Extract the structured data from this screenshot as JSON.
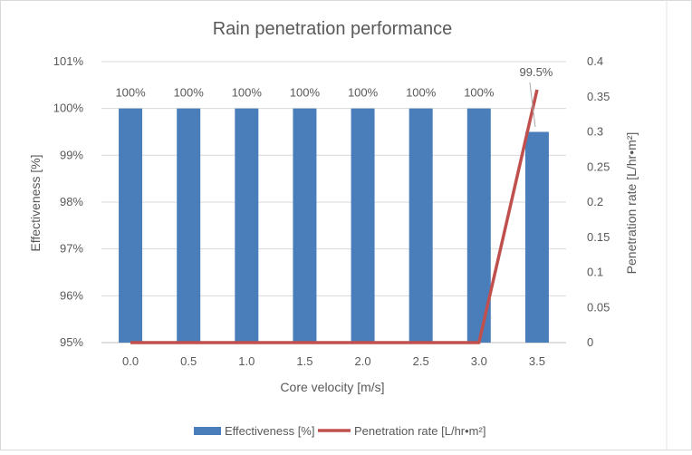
{
  "chart_data": {
    "type": "bar",
    "title": "Rain penetration performance",
    "xlabel": "Core velocity [m/s]",
    "ylabel": "Effectiveness [%]",
    "y2label": "Penetration rate [L/hr•m²]",
    "categories": [
      "0.0",
      "0.5",
      "1.0",
      "1.5",
      "2.0",
      "2.5",
      "3.0",
      "3.5"
    ],
    "series": [
      {
        "name": "Effectiveness [%]",
        "kind": "bar",
        "axis": "left",
        "color": "#4a7ebb",
        "values": [
          100,
          100,
          100,
          100,
          100,
          100,
          100,
          99.5
        ],
        "labels": [
          "100%",
          "100%",
          "100%",
          "100%",
          "100%",
          "100%",
          "100%",
          "99.5%"
        ]
      },
      {
        "name": "Penetration rate [L/hr•m²]",
        "kind": "line",
        "axis": "right",
        "color": "#c0504d",
        "values": [
          0,
          0,
          0,
          0,
          0,
          0,
          0,
          0.36
        ]
      }
    ],
    "ylim": [
      95,
      101
    ],
    "y2lim": [
      0,
      0.4
    ],
    "yticks": [
      "95%",
      "96%",
      "97%",
      "98%",
      "99%",
      "100%",
      "101%"
    ],
    "y2ticks": [
      "0",
      "0.05",
      "0.1",
      "0.15",
      "0.2",
      "0.25",
      "0.3",
      "0.35",
      "0.4"
    ],
    "grid": true,
    "legend": "bottom"
  }
}
